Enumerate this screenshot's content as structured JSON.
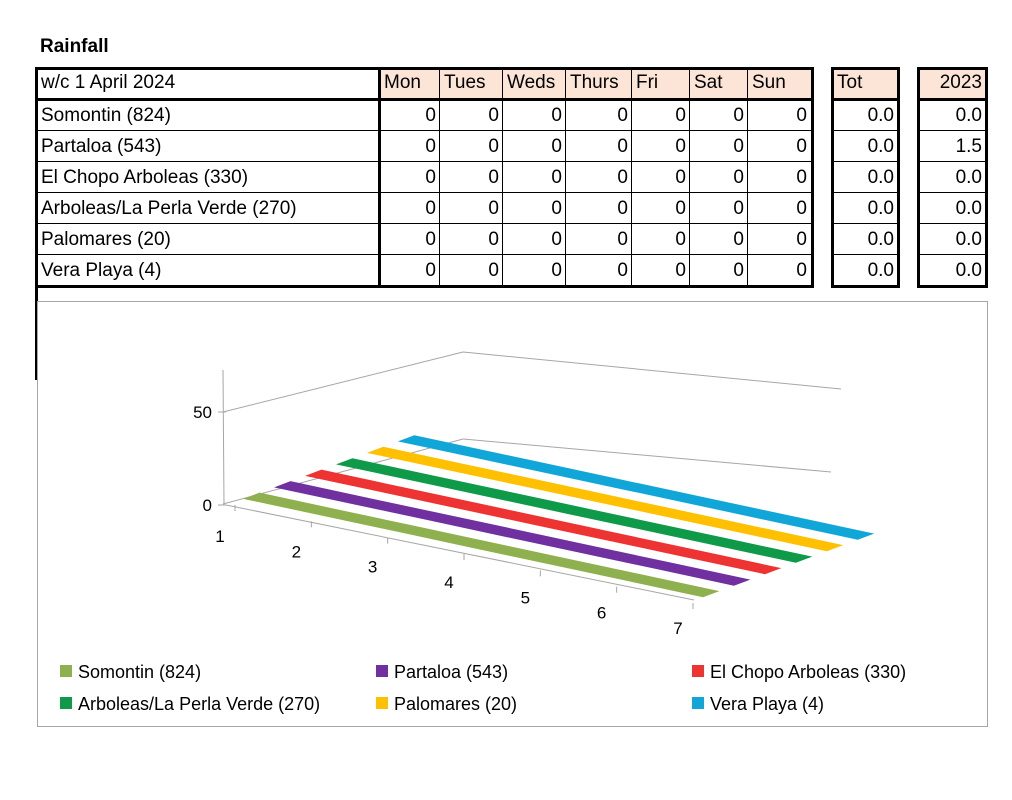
{
  "title": "Rainfall",
  "table": {
    "week_label": "w/c  1 April 2024",
    "day_headers": [
      "Mon",
      "Tues",
      "Weds",
      "Thurs",
      "Fri",
      "Sat",
      "Sun"
    ],
    "total_header": "Tot",
    "prev_year_header": "2023",
    "rows": [
      {
        "name": "Somontin (824)",
        "days": [
          "0",
          "0",
          "0",
          "0",
          "0",
          "0",
          "0"
        ],
        "total": "0.0",
        "prev": "0.0"
      },
      {
        "name": "Partaloa (543)",
        "days": [
          "0",
          "0",
          "0",
          "0",
          "0",
          "0",
          "0"
        ],
        "total": "0.0",
        "prev": "1.5"
      },
      {
        "name": "El Chopo Arboleas (330)",
        "days": [
          "0",
          "0",
          "0",
          "0",
          "0",
          "0",
          "0"
        ],
        "total": "0.0",
        "prev": "0.0"
      },
      {
        "name": "Arboleas/La Perla Verde (270)",
        "days": [
          "0",
          "0",
          "0",
          "0",
          "0",
          "0",
          "0"
        ],
        "total": "0.0",
        "prev": "0.0"
      },
      {
        "name": "Palomares (20)",
        "days": [
          "0",
          "0",
          "0",
          "0",
          "0",
          "0",
          "0"
        ],
        "total": "0.0",
        "prev": "0.0"
      },
      {
        "name": "Vera Playa (4)",
        "days": [
          "0",
          "0",
          "0",
          "0",
          "0",
          "0",
          "0"
        ],
        "total": "0.0",
        "prev": "0.0"
      }
    ]
  },
  "chart_data": {
    "type": "area",
    "three_d": true,
    "x": [
      1,
      2,
      3,
      4,
      5,
      6,
      7
    ],
    "y_ticks": [
      0,
      50
    ],
    "ylim": [
      0,
      50
    ],
    "legend_position": "bottom",
    "series": [
      {
        "name": "Somontin (824)",
        "color": "#8fb04f",
        "values": [
          0,
          0,
          0,
          0,
          0,
          0,
          0
        ]
      },
      {
        "name": "Partaloa (543)",
        "color": "#7030a0",
        "values": [
          0,
          0,
          0,
          0,
          0,
          0,
          0
        ]
      },
      {
        "name": "El Chopo Arboleas (330)",
        "color": "#ee3333",
        "values": [
          0,
          0,
          0,
          0,
          0,
          0,
          0
        ]
      },
      {
        "name": "Arboleas/La Perla Verde (270)",
        "color": "#0e9a48",
        "values": [
          0,
          0,
          0,
          0,
          0,
          0,
          0
        ]
      },
      {
        "name": "Palomares (20)",
        "color": "#ffc000",
        "values": [
          0,
          0,
          0,
          0,
          0,
          0,
          0
        ]
      },
      {
        "name": "Vera Playa (4)",
        "color": "#11a6d8",
        "values": [
          0,
          0,
          0,
          0,
          0,
          0,
          0
        ]
      }
    ]
  }
}
